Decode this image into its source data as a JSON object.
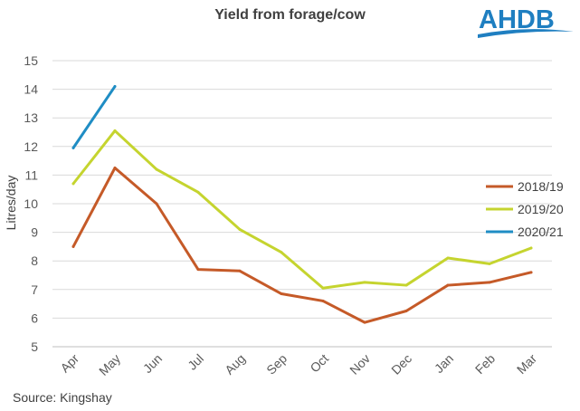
{
  "chart_data": {
    "type": "line",
    "title": "Yield from forage/cow",
    "xlabel": "",
    "ylabel": "Litres/day",
    "categories": [
      "Apr",
      "May",
      "Jun",
      "Jul",
      "Aug",
      "Sep",
      "Oct",
      "Nov",
      "Dec",
      "Jan",
      "Feb",
      "Mar"
    ],
    "ylim": [
      5,
      15
    ],
    "yticks": [
      "5",
      "6",
      "7",
      "8",
      "9",
      "10",
      "11",
      "12",
      "13",
      "14",
      "15"
    ],
    "grid": "horizontal",
    "legend_position": "right",
    "series": [
      {
        "name": "2018/19",
        "color": "#C55A28",
        "values": [
          8.5,
          11.25,
          10.0,
          7.7,
          7.65,
          6.85,
          6.6,
          5.85,
          6.25,
          7.15,
          7.25,
          7.6
        ]
      },
      {
        "name": "2019/20",
        "color": "#C5D42F",
        "values": [
          10.7,
          12.55,
          11.2,
          10.4,
          9.1,
          8.3,
          7.05,
          7.25,
          7.15,
          8.1,
          7.9,
          8.45
        ]
      },
      {
        "name": "2020/21",
        "color": "#1F8DC4",
        "values": [
          11.95,
          14.1,
          null,
          null,
          null,
          null,
          null,
          null,
          null,
          null,
          null,
          null
        ]
      }
    ]
  },
  "source": "Source: Kingshay",
  "logo": {
    "text": "AHDB",
    "color": "#1F7FC1"
  }
}
